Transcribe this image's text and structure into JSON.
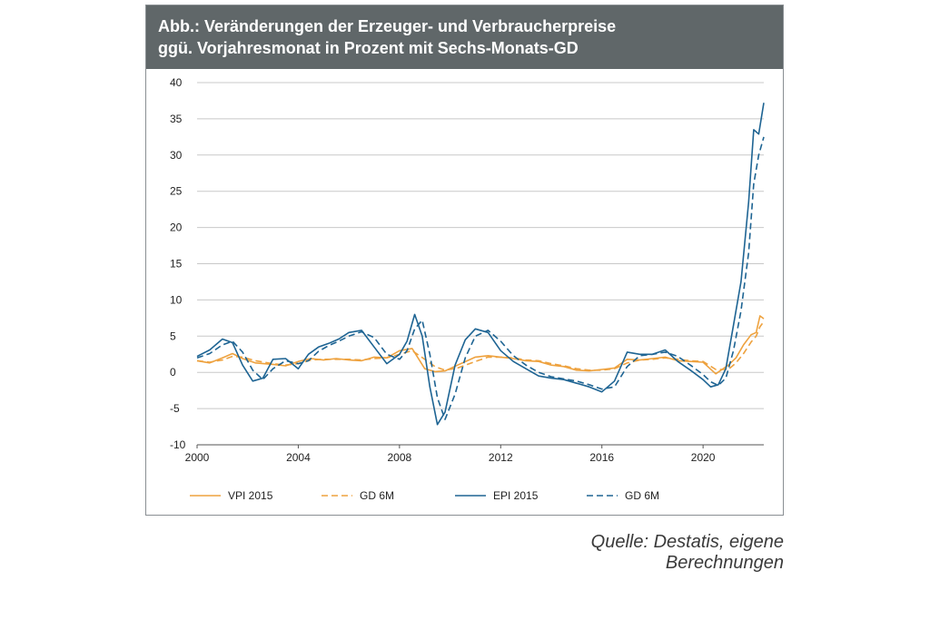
{
  "title": {
    "line1": "Abb.: Veränderungen der Erzeuger- und Verbraucherpreise",
    "line2": "ggü. Vorjahresmonat in Prozent mit Sechs-Monats-GD"
  },
  "source": "Quelle: Destatis, eigene Berechnungen",
  "colors": {
    "vpi": "#eea23f",
    "epi": "#1e6493",
    "grid": "#c8c8c8",
    "header": "#606769"
  },
  "chart_data": {
    "type": "line",
    "title": "Veränderungen der Erzeuger- und Verbraucherpreise ggü. Vorjahresmonat in Prozent mit Sechs-Monats-GD",
    "xlabel": "",
    "ylabel": "",
    "xlim": [
      2000,
      2022.4
    ],
    "ylim": [
      -10,
      40
    ],
    "xticks": [
      2000,
      2004,
      2008,
      2012,
      2016,
      2020
    ],
    "yticks": [
      40,
      35,
      30,
      25,
      20,
      15,
      10,
      5,
      0,
      -5,
      -10
    ],
    "grid": true,
    "legend_position": "bottom",
    "series": [
      {
        "name": "VPI 2015",
        "color": "#eea23f",
        "dash": false,
        "x": [
          2000,
          2000.5,
          2001,
          2001.4,
          2001.8,
          2002.3,
          2003,
          2003.5,
          2004,
          2004.5,
          2005,
          2005.5,
          2006,
          2006.5,
          2007,
          2007.5,
          2008,
          2008.5,
          2009,
          2009.4,
          2009.8,
          2010.3,
          2011,
          2011.5,
          2012,
          2012.5,
          2013,
          2013.5,
          2014,
          2014.5,
          2015,
          2015.5,
          2016,
          2016.5,
          2017,
          2017.5,
          2018,
          2018.5,
          2019,
          2019.5,
          2020,
          2020.5,
          2021,
          2021.3,
          2021.6,
          2021.9,
          2022.1,
          2022.25,
          2022.4
        ],
        "y": [
          1.6,
          1.3,
          2.0,
          2.6,
          1.9,
          1.3,
          1.1,
          0.9,
          1.5,
          1.9,
          1.7,
          1.9,
          1.7,
          1.6,
          2.1,
          2.0,
          3.0,
          3.3,
          0.5,
          0.1,
          0.2,
          1.0,
          2.1,
          2.3,
          2.1,
          1.9,
          1.6,
          1.5,
          1.0,
          0.8,
          0.3,
          0.2,
          0.4,
          0.6,
          1.8,
          1.7,
          1.9,
          2.1,
          1.6,
          1.5,
          1.4,
          -0.2,
          1.0,
          2.0,
          3.8,
          5.2,
          5.5,
          7.8,
          7.4
        ]
      },
      {
        "name": "GD 6M",
        "color": "#eea23f",
        "dash": true,
        "x": [
          2000,
          2000.5,
          2001,
          2001.4,
          2001.8,
          2002.3,
          2003,
          2003.5,
          2004,
          2004.5,
          2005,
          2005.5,
          2006,
          2006.5,
          2007,
          2007.5,
          2008,
          2008.5,
          2009,
          2009.4,
          2009.8,
          2010.3,
          2011,
          2011.5,
          2012,
          2012.5,
          2013,
          2013.5,
          2014,
          2014.5,
          2015,
          2015.5,
          2016,
          2016.5,
          2017,
          2017.5,
          2018,
          2018.5,
          2019,
          2019.5,
          2020,
          2020.5,
          2021,
          2021.3,
          2021.6,
          2021.9,
          2022.1,
          2022.25,
          2022.4
        ],
        "y": [
          1.6,
          1.4,
          1.7,
          2.2,
          2.1,
          1.6,
          1.2,
          1.0,
          1.2,
          1.7,
          1.8,
          1.8,
          1.8,
          1.7,
          1.9,
          2.0,
          2.5,
          3.0,
          1.8,
          0.8,
          0.3,
          0.6,
          1.5,
          2.1,
          2.1,
          2.0,
          1.7,
          1.6,
          1.2,
          0.9,
          0.5,
          0.3,
          0.3,
          0.5,
          1.3,
          1.7,
          1.8,
          2.0,
          1.8,
          1.6,
          1.5,
          0.4,
          0.4,
          1.3,
          2.6,
          4.2,
          5.0,
          6.3,
          7.0
        ]
      },
      {
        "name": "EPI 2015",
        "color": "#1e6493",
        "dash": false,
        "x": [
          2000,
          2000.5,
          2001,
          2001.4,
          2001.8,
          2002.2,
          2002.6,
          2003,
          2003.5,
          2004,
          2004.4,
          2004.8,
          2005.2,
          2005.6,
          2006,
          2006.5,
          2007,
          2007.5,
          2008,
          2008.3,
          2008.6,
          2008.9,
          2009.2,
          2009.5,
          2009.8,
          2010.2,
          2010.6,
          2011,
          2011.5,
          2012,
          2012.5,
          2013,
          2013.5,
          2014,
          2014.5,
          2015,
          2015.5,
          2016,
          2016.5,
          2017,
          2017.5,
          2018,
          2018.5,
          2019,
          2019.5,
          2020,
          2020.3,
          2020.6,
          2020.9,
          2021.2,
          2021.5,
          2021.8,
          2022.0,
          2022.2,
          2022.4
        ],
        "y": [
          2.2,
          3.1,
          4.6,
          4.1,
          1.0,
          -1.2,
          -0.8,
          1.8,
          1.9,
          0.5,
          2.5,
          3.5,
          4.0,
          4.6,
          5.5,
          5.8,
          3.5,
          1.2,
          2.5,
          4.3,
          8.0,
          5.0,
          -2.0,
          -7.2,
          -5.5,
          1.0,
          4.5,
          6.0,
          5.5,
          3.0,
          1.5,
          0.5,
          -0.5,
          -0.8,
          -1.0,
          -1.5,
          -2.0,
          -2.7,
          -1.2,
          2.8,
          2.5,
          2.5,
          3.1,
          1.5,
          0.3,
          -1.0,
          -2.0,
          -1.7,
          0.5,
          6.5,
          12.5,
          23.5,
          33.5,
          32.9,
          37.2
        ]
      },
      {
        "name": "GD 6M",
        "color": "#1e6493",
        "dash": true,
        "x": [
          2000,
          2000.5,
          2001,
          2001.4,
          2001.8,
          2002.2,
          2002.6,
          2003,
          2003.5,
          2004,
          2004.4,
          2004.8,
          2005.2,
          2005.6,
          2006,
          2006.5,
          2007,
          2007.5,
          2008,
          2008.3,
          2008.6,
          2008.9,
          2009.2,
          2009.5,
          2009.8,
          2010.2,
          2010.6,
          2011,
          2011.5,
          2012,
          2012.5,
          2013,
          2013.5,
          2014,
          2014.5,
          2015,
          2015.5,
          2016,
          2016.5,
          2017,
          2017.5,
          2018,
          2018.5,
          2019,
          2019.5,
          2020,
          2020.3,
          2020.6,
          2020.9,
          2021.2,
          2021.5,
          2021.8,
          2022.0,
          2022.2,
          2022.4
        ],
        "y": [
          2.0,
          2.6,
          3.8,
          4.3,
          2.8,
          0.3,
          -1.0,
          0.5,
          1.6,
          1.2,
          1.6,
          2.9,
          3.7,
          4.3,
          5.0,
          5.6,
          4.8,
          2.5,
          1.8,
          3.0,
          6.0,
          7.2,
          2.5,
          -3.5,
          -6.5,
          -3.0,
          2.0,
          5.0,
          5.8,
          4.3,
          2.3,
          1.0,
          0.0,
          -0.6,
          -0.9,
          -1.2,
          -1.7,
          -2.3,
          -2.0,
          0.8,
          2.3,
          2.5,
          2.8,
          2.2,
          1.0,
          -0.3,
          -1.3,
          -1.8,
          -0.8,
          3.0,
          8.5,
          16.5,
          26.0,
          30.0,
          32.5
        ]
      }
    ]
  }
}
